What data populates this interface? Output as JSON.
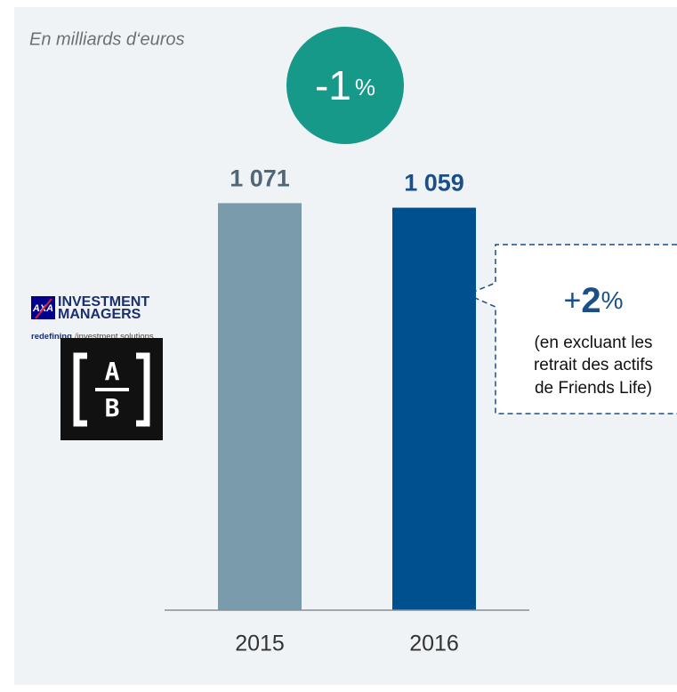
{
  "chart_data": {
    "type": "bar",
    "subtitle": "En milliards d‘euros",
    "categories": [
      "2015",
      "2016"
    ],
    "values": [
      1071,
      1059
    ],
    "value_labels": [
      "1 071",
      "1 059"
    ],
    "colors": [
      "#7a9bab",
      "#00508f"
    ],
    "value_label_colors": [
      "#4f6777",
      "#1b4f8a"
    ],
    "ylim": [
      0,
      1100
    ],
    "badge": {
      "value": "-1",
      "unit": "%",
      "color": "#17998a"
    },
    "callout": {
      "sign": "+",
      "value": "2",
      "unit": "%",
      "lines": [
        "(en excluant les",
        "retrait des actifs",
        "de Friends Life)"
      ]
    },
    "logos": {
      "axa": {
        "brand": "AXA",
        "line1": "INVESTMENT",
        "line2": "MANAGERS",
        "tag1": "redefining",
        "tag2": "/",
        "tag3": "investment solutions"
      },
      "ab": {
        "top": "A",
        "bottom": "B"
      }
    }
  }
}
